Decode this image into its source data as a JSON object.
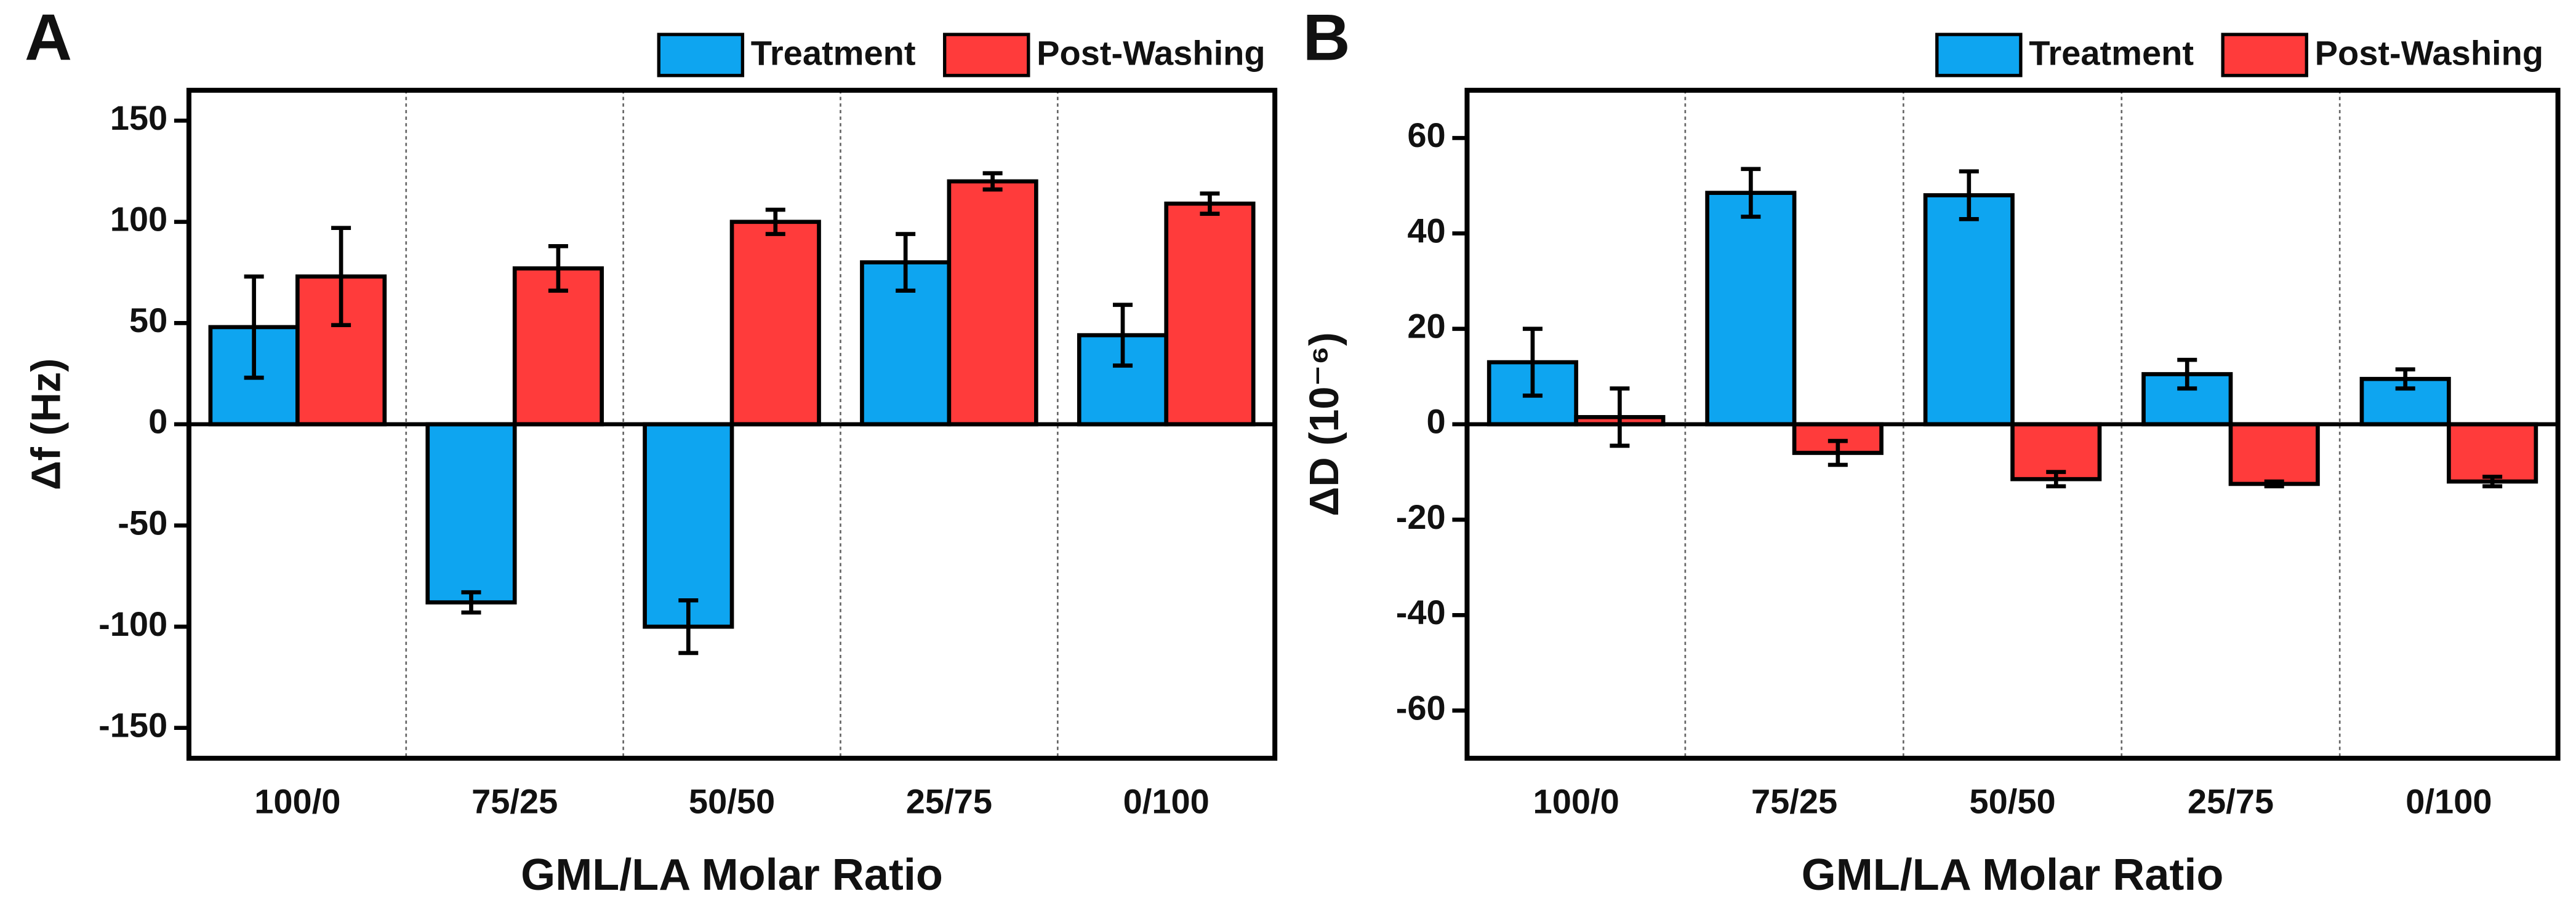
{
  "chart_data": [
    {
      "type": "bar",
      "panel": "A",
      "y_label": "Δf (Hz)",
      "x_label": "GML/LA Molar Ratio",
      "categories": [
        "100/0",
        "75/25",
        "50/50",
        "25/75",
        "0/100"
      ],
      "series": [
        {
          "name": "Treatment",
          "color": "#0ea5f0",
          "values": [
            48,
            -88,
            -100,
            80,
            44
          ],
          "errors": [
            25,
            5,
            13,
            14,
            15
          ]
        },
        {
          "name": "Post-Washing",
          "color": "#ff3b3b",
          "values": [
            73,
            77,
            100,
            120,
            109
          ],
          "errors": [
            24,
            11,
            6,
            4,
            5
          ]
        }
      ],
      "ylim": [
        -165,
        165
      ],
      "yticks": [
        -150,
        -100,
        -50,
        0,
        50,
        100,
        150
      ]
    },
    {
      "type": "bar",
      "panel": "B",
      "y_label": "ΔD (10⁻⁶)",
      "x_label": "GML/LA Molar Ratio",
      "categories": [
        "100/0",
        "75/25",
        "50/50",
        "25/75",
        "0/100"
      ],
      "series": [
        {
          "name": "Treatment",
          "color": "#0ea5f0",
          "values": [
            13,
            48.5,
            48,
            10.5,
            9.5
          ],
          "errors": [
            7,
            5,
            5,
            3,
            2
          ]
        },
        {
          "name": "Post-Washing",
          "color": "#ff3b3b",
          "values": [
            1.5,
            -6,
            -11.5,
            -12.5,
            -12
          ],
          "errors": [
            6,
            2.5,
            1.5,
            0.5,
            1
          ]
        }
      ],
      "ylim": [
        -70,
        70
      ],
      "yticks": [
        -60,
        -40,
        -20,
        0,
        20,
        40,
        60
      ]
    }
  ]
}
